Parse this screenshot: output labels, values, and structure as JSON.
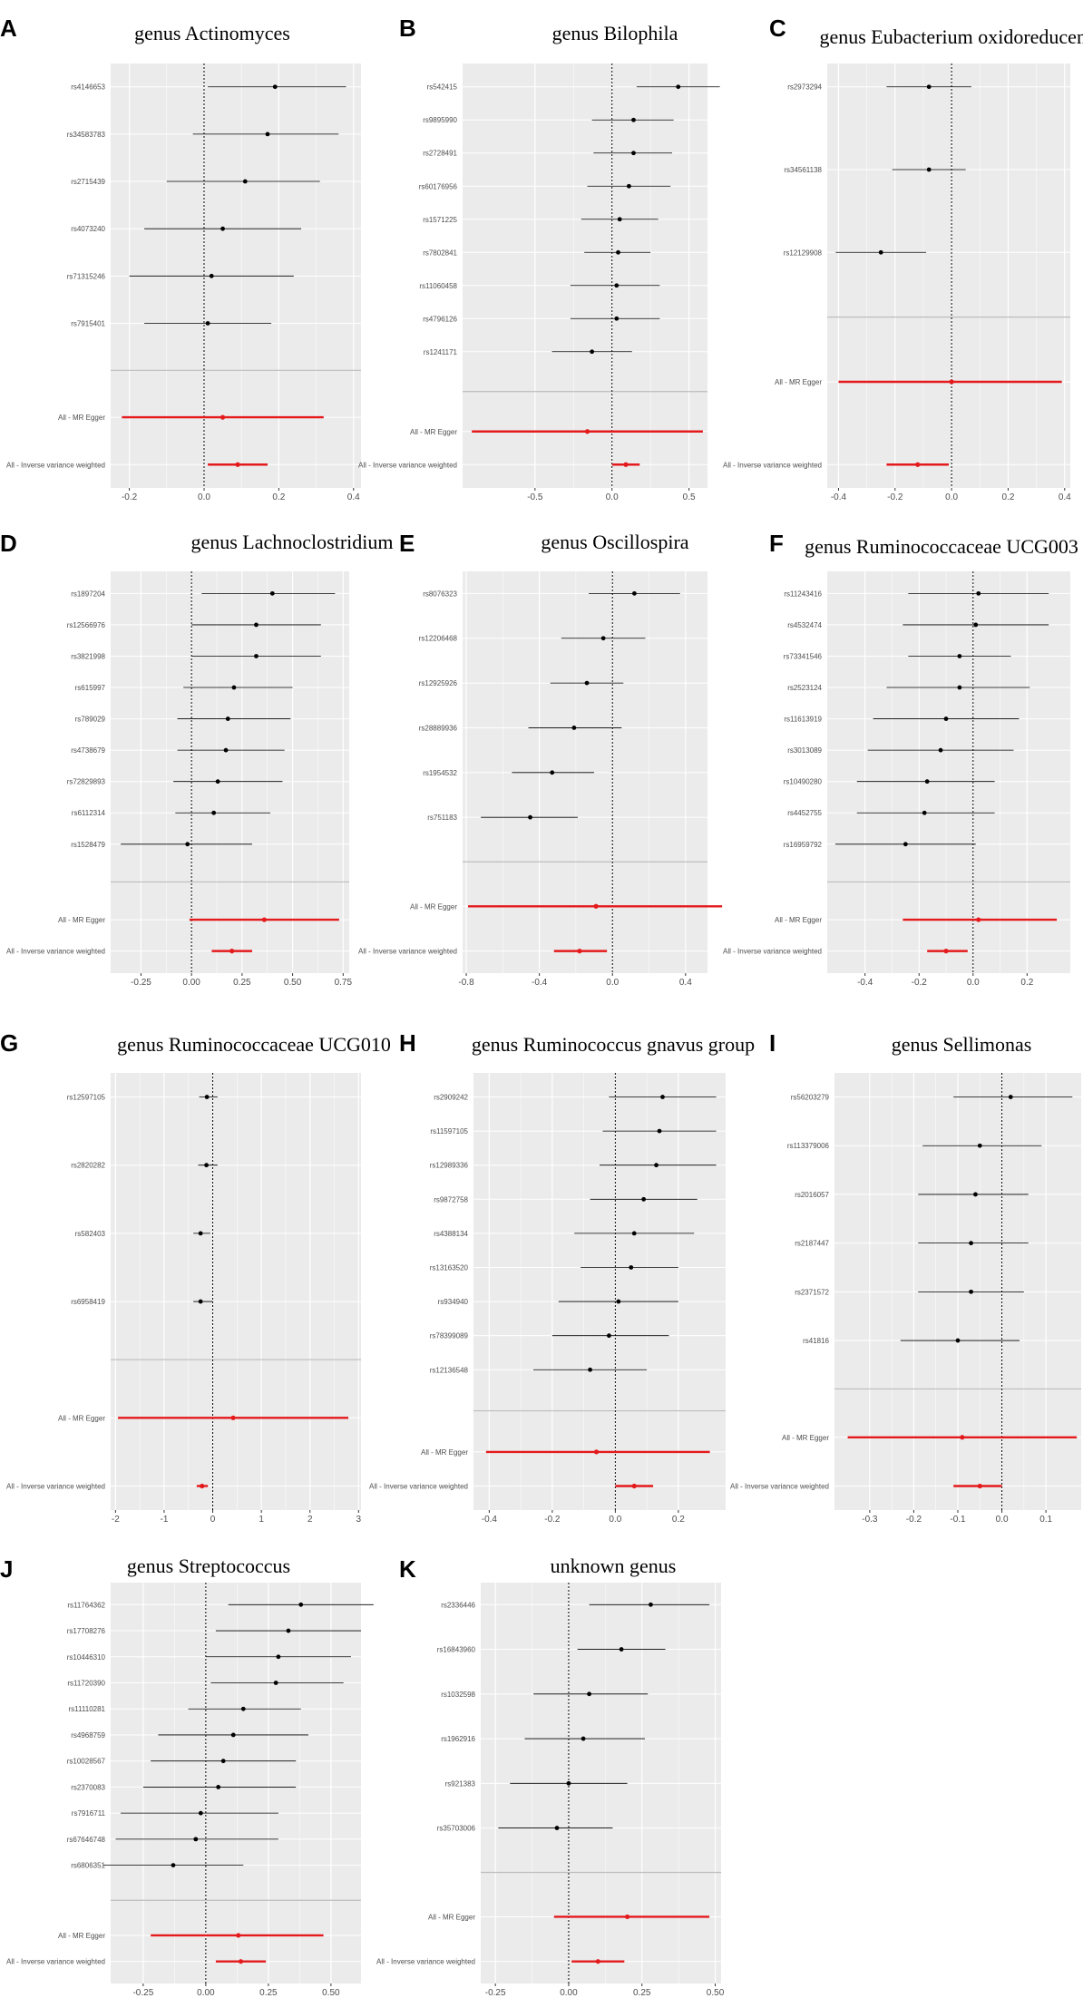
{
  "colors": {
    "panel_bg": "#ebebeb",
    "grid": "#ffffff",
    "point": "#000000",
    "summary": "#e41a1c",
    "separator": "#bdbdbd"
  },
  "chart_data": [
    {
      "type": "forest",
      "panel": "A",
      "title": "genus Actinomyces",
      "xlim": [
        -0.25,
        0.42
      ],
      "ticks": [
        -0.2,
        0.0,
        0.2,
        0.4
      ],
      "tick_labels": [
        "-0.2",
        "0.0",
        "0.2",
        "0.4"
      ],
      "snps": [
        {
          "label": "rs4146653",
          "est": 0.19,
          "lo": 0.01,
          "hi": 0.38
        },
        {
          "label": "rs34583783",
          "est": 0.17,
          "lo": -0.03,
          "hi": 0.36
        },
        {
          "label": "rs2715439",
          "est": 0.11,
          "lo": -0.1,
          "hi": 0.31
        },
        {
          "label": "rs4073240",
          "est": 0.05,
          "lo": -0.16,
          "hi": 0.26
        },
        {
          "label": "rs71315246",
          "est": 0.02,
          "lo": -0.2,
          "hi": 0.24
        },
        {
          "label": "rs7915401",
          "est": 0.01,
          "lo": -0.16,
          "hi": 0.18
        }
      ],
      "summary": [
        {
          "label": "All - MR Egger",
          "est": 0.05,
          "lo": -0.22,
          "hi": 0.32
        },
        {
          "label": "All - Inverse variance weighted",
          "est": 0.09,
          "lo": 0.01,
          "hi": 0.17
        }
      ]
    },
    {
      "type": "forest",
      "panel": "B",
      "title": "genus Bilophila",
      "xlim": [
        -0.97,
        0.62
      ],
      "ticks": [
        -0.5,
        0.0,
        0.5
      ],
      "tick_labels": [
        "-0.5",
        "0.0",
        "0.5"
      ],
      "snps": [
        {
          "label": "rs542415",
          "est": 0.43,
          "lo": 0.16,
          "hi": 0.7
        },
        {
          "label": "rs9895990",
          "est": 0.14,
          "lo": -0.13,
          "hi": 0.4
        },
        {
          "label": "rs2728491",
          "est": 0.14,
          "lo": -0.12,
          "hi": 0.39
        },
        {
          "label": "rs60176956",
          "est": 0.11,
          "lo": -0.16,
          "hi": 0.38
        },
        {
          "label": "rs1571225",
          "est": 0.05,
          "lo": -0.2,
          "hi": 0.3
        },
        {
          "label": "rs7802841",
          "est": 0.04,
          "lo": -0.18,
          "hi": 0.25
        },
        {
          "label": "rs11060458",
          "est": 0.03,
          "lo": -0.27,
          "hi": 0.31
        },
        {
          "label": "rs4796126",
          "est": 0.03,
          "lo": -0.27,
          "hi": 0.31
        },
        {
          "label": "rs1241171",
          "est": -0.13,
          "lo": -0.39,
          "hi": 0.13
        }
      ],
      "summary": [
        {
          "label": "All - MR Egger",
          "est": -0.16,
          "lo": -0.91,
          "hi": 0.59
        },
        {
          "label": "All - Inverse variance weighted",
          "est": 0.09,
          "lo": 0.0,
          "hi": 0.18
        }
      ]
    },
    {
      "type": "forest",
      "panel": "C",
      "title": "genus Eubacterium oxidoreducens",
      "xlim": [
        -0.44,
        0.42
      ],
      "ticks": [
        -0.4,
        -0.2,
        0.0,
        0.2,
        0.4
      ],
      "tick_labels": [
        "-0.4",
        "-0.2",
        "0.0",
        "0.2",
        "0.4"
      ],
      "snps": [
        {
          "label": "rs2973294",
          "est": -0.08,
          "lo": -0.23,
          "hi": 0.07
        },
        {
          "label": "rs34561138",
          "est": -0.08,
          "lo": -0.21,
          "hi": 0.05
        },
        {
          "label": "rs12129908",
          "est": -0.25,
          "lo": -0.41,
          "hi": -0.09
        }
      ],
      "summary": [
        {
          "label": "All - MR Egger",
          "est": 0.0,
          "lo": -0.4,
          "hi": 0.39
        },
        {
          "label": "All - Inverse variance weighted",
          "est": -0.12,
          "lo": -0.23,
          "hi": -0.01
        }
      ]
    },
    {
      "type": "forest",
      "panel": "D",
      "title": "genus Lachnoclostridium",
      "xlim": [
        -0.4,
        0.78
      ],
      "ticks": [
        -0.25,
        0.0,
        0.25,
        0.5,
        0.75
      ],
      "tick_labels": [
        "-0.25",
        "0.00",
        "0.25",
        "0.50",
        "0.75"
      ],
      "snps": [
        {
          "label": "rs1897204",
          "est": 0.4,
          "lo": 0.05,
          "hi": 0.71
        },
        {
          "label": "rs12566976",
          "est": 0.32,
          "lo": 0.0,
          "hi": 0.64
        },
        {
          "label": "rs3821998",
          "est": 0.32,
          "lo": 0.0,
          "hi": 0.64
        },
        {
          "label": "rs615997",
          "est": 0.21,
          "lo": -0.04,
          "hi": 0.5
        },
        {
          "label": "rs789029",
          "est": 0.18,
          "lo": -0.07,
          "hi": 0.49
        },
        {
          "label": "rs4738679",
          "est": 0.17,
          "lo": -0.07,
          "hi": 0.46
        },
        {
          "label": "rs72829893",
          "est": 0.13,
          "lo": -0.09,
          "hi": 0.45
        },
        {
          "label": "rs6112314",
          "est": 0.11,
          "lo": -0.08,
          "hi": 0.39
        },
        {
          "label": "rs1528479",
          "est": -0.02,
          "lo": -0.35,
          "hi": 0.3
        }
      ],
      "summary": [
        {
          "label": "All - MR Egger",
          "est": 0.36,
          "lo": -0.01,
          "hi": 0.73
        },
        {
          "label": "All - Inverse variance weighted",
          "est": 0.2,
          "lo": 0.1,
          "hi": 0.3
        }
      ]
    },
    {
      "type": "forest",
      "panel": "E",
      "title": "genus Oscillospira",
      "xlim": [
        -0.82,
        0.52
      ],
      "ticks": [
        -0.8,
        -0.4,
        0.0,
        0.4
      ],
      "tick_labels": [
        "-0.8",
        "-0.4",
        "0.0",
        "0.4"
      ],
      "snps": [
        {
          "label": "rs8076323",
          "est": 0.12,
          "lo": -0.13,
          "hi": 0.37
        },
        {
          "label": "rs12206468",
          "est": -0.05,
          "lo": -0.28,
          "hi": 0.18
        },
        {
          "label": "rs12925926",
          "est": -0.14,
          "lo": -0.34,
          "hi": 0.06
        },
        {
          "label": "rs28889936",
          "est": -0.21,
          "lo": -0.46,
          "hi": 0.05
        },
        {
          "label": "rs1954532",
          "est": -0.33,
          "lo": -0.55,
          "hi": -0.1
        },
        {
          "label": "rs751183",
          "est": -0.45,
          "lo": -0.72,
          "hi": -0.19
        }
      ],
      "summary": [
        {
          "label": "All - MR Egger",
          "est": -0.09,
          "lo": -0.79,
          "hi": 0.6
        },
        {
          "label": "All - Inverse variance weighted",
          "est": -0.18,
          "lo": -0.32,
          "hi": -0.03
        }
      ]
    },
    {
      "type": "forest",
      "panel": "F",
      "title": "genus Ruminococcaceae UCG003",
      "xlim": [
        -0.54,
        0.36
      ],
      "ticks": [
        -0.4,
        -0.2,
        0.0,
        0.2
      ],
      "tick_labels": [
        "-0.4",
        "-0.2",
        "0.0",
        "0.2"
      ],
      "snps": [
        {
          "label": "rs11243416",
          "est": 0.02,
          "lo": -0.24,
          "hi": 0.28
        },
        {
          "label": "rs4532474",
          "est": 0.01,
          "lo": -0.26,
          "hi": 0.28
        },
        {
          "label": "rs73341546",
          "est": -0.05,
          "lo": -0.24,
          "hi": 0.14
        },
        {
          "label": "rs2523124",
          "est": -0.05,
          "lo": -0.32,
          "hi": 0.21
        },
        {
          "label": "rs11613919",
          "est": -0.1,
          "lo": -0.37,
          "hi": 0.17
        },
        {
          "label": "rs3013089",
          "est": -0.12,
          "lo": -0.39,
          "hi": 0.15
        },
        {
          "label": "rs10490280",
          "est": -0.17,
          "lo": -0.43,
          "hi": 0.08
        },
        {
          "label": "rs4452755",
          "est": -0.18,
          "lo": -0.43,
          "hi": 0.08
        },
        {
          "label": "rs16959792",
          "est": -0.25,
          "lo": -0.51,
          "hi": 0.01
        }
      ],
      "summary": [
        {
          "label": "All - MR Egger",
          "est": 0.02,
          "lo": -0.26,
          "hi": 0.31
        },
        {
          "label": "All - Inverse variance weighted",
          "est": -0.1,
          "lo": -0.17,
          "hi": -0.02
        }
      ]
    },
    {
      "type": "forest",
      "panel": "G",
      "title": "genus Ruminococcaceae UCG010",
      "xlim": [
        -2.1,
        3.05
      ],
      "ticks": [
        -2,
        -1,
        0,
        1,
        2,
        3
      ],
      "tick_labels": [
        "-2",
        "-1",
        "0",
        "1",
        "2",
        "3"
      ],
      "snps": [
        {
          "label": "rs12597105",
          "est": -0.12,
          "lo": -0.28,
          "hi": 0.1
        },
        {
          "label": "rs2820282",
          "est": -0.13,
          "lo": -0.3,
          "hi": 0.1
        },
        {
          "label": "rs582403",
          "est": -0.25,
          "lo": -0.4,
          "hi": -0.05
        },
        {
          "label": "rs6958419",
          "est": -0.25,
          "lo": -0.4,
          "hi": 0.0
        }
      ],
      "summary": [
        {
          "label": "All - MR Egger",
          "est": 0.42,
          "lo": -1.95,
          "hi": 2.79
        },
        {
          "label": "All - Inverse variance weighted",
          "est": -0.22,
          "lo": -0.33,
          "hi": -0.1
        }
      ]
    },
    {
      "type": "forest",
      "panel": "H",
      "title": "genus Ruminococcus gnavus group",
      "xlim": [
        -0.45,
        0.35
      ],
      "ticks": [
        -0.4,
        -0.2,
        0.0,
        0.2
      ],
      "tick_labels": [
        "-0.4",
        "-0.2",
        "0.0",
        "0.2"
      ],
      "snps": [
        {
          "label": "rs2909242",
          "est": 0.15,
          "lo": -0.02,
          "hi": 0.32
        },
        {
          "label": "rs11597105",
          "est": 0.14,
          "lo": -0.04,
          "hi": 0.32
        },
        {
          "label": "rs12989336",
          "est": 0.13,
          "lo": -0.05,
          "hi": 0.32
        },
        {
          "label": "rs9872758",
          "est": 0.09,
          "lo": -0.08,
          "hi": 0.26
        },
        {
          "label": "rs4388134",
          "est": 0.06,
          "lo": -0.13,
          "hi": 0.25
        },
        {
          "label": "rs13163520",
          "est": 0.05,
          "lo": -0.11,
          "hi": 0.2
        },
        {
          "label": "rs934940",
          "est": 0.01,
          "lo": -0.18,
          "hi": 0.2
        },
        {
          "label": "rs78399089",
          "est": -0.02,
          "lo": -0.2,
          "hi": 0.17
        },
        {
          "label": "rs12136548",
          "est": -0.08,
          "lo": -0.26,
          "hi": 0.1
        }
      ],
      "summary": [
        {
          "label": "All - MR Egger",
          "est": -0.06,
          "lo": -0.41,
          "hi": 0.3
        },
        {
          "label": "All - Inverse variance weighted",
          "est": 0.06,
          "lo": 0.0,
          "hi": 0.12
        }
      ]
    },
    {
      "type": "forest",
      "panel": "I",
      "title": "genus Sellimonas",
      "xlim": [
        -0.38,
        0.18
      ],
      "ticks": [
        -0.3,
        -0.2,
        -0.1,
        0.0,
        0.1
      ],
      "tick_labels": [
        "-0.3",
        "-0.2",
        "-0.1",
        "0.0",
        "0.1"
      ],
      "snps": [
        {
          "label": "rs56203279",
          "est": 0.02,
          "lo": -0.11,
          "hi": 0.16
        },
        {
          "label": "rs113379006",
          "est": -0.05,
          "lo": -0.18,
          "hi": 0.09
        },
        {
          "label": "rs2016057",
          "est": -0.06,
          "lo": -0.19,
          "hi": 0.06
        },
        {
          "label": "rs2187447",
          "est": -0.07,
          "lo": -0.19,
          "hi": 0.06
        },
        {
          "label": "rs2371572",
          "est": -0.07,
          "lo": -0.19,
          "hi": 0.05
        },
        {
          "label": "rs41816",
          "est": -0.1,
          "lo": -0.23,
          "hi": 0.04
        }
      ],
      "summary": [
        {
          "label": "All - MR Egger",
          "est": -0.09,
          "lo": -0.35,
          "hi": 0.17
        },
        {
          "label": "All - Inverse variance weighted",
          "est": -0.05,
          "lo": -0.11,
          "hi": 0.0
        }
      ]
    },
    {
      "type": "forest",
      "panel": "J",
      "title": "genus Streptococcus",
      "xlim": [
        -0.38,
        0.62
      ],
      "ticks": [
        -0.25,
        0.0,
        0.25,
        0.5
      ],
      "tick_labels": [
        "-0.25",
        "0.00",
        "0.25",
        "0.50"
      ],
      "snps": [
        {
          "label": "rs11764362",
          "est": 0.38,
          "lo": 0.09,
          "hi": 0.67
        },
        {
          "label": "rs17708276",
          "est": 0.33,
          "lo": 0.04,
          "hi": 0.62
        },
        {
          "label": "rs10446310",
          "est": 0.29,
          "lo": 0.0,
          "hi": 0.58
        },
        {
          "label": "rs11720390",
          "est": 0.28,
          "lo": 0.02,
          "hi": 0.55
        },
        {
          "label": "rs11110281",
          "est": 0.15,
          "lo": -0.07,
          "hi": 0.38
        },
        {
          "label": "rs4968759",
          "est": 0.11,
          "lo": -0.19,
          "hi": 0.41
        },
        {
          "label": "rs10028567",
          "est": 0.07,
          "lo": -0.22,
          "hi": 0.36
        },
        {
          "label": "rs2370083",
          "est": 0.05,
          "lo": -0.25,
          "hi": 0.36
        },
        {
          "label": "rs7916711",
          "est": -0.02,
          "lo": -0.34,
          "hi": 0.29
        },
        {
          "label": "rs67646748",
          "est": -0.04,
          "lo": -0.36,
          "hi": 0.29
        },
        {
          "label": "rs6806351",
          "est": -0.13,
          "lo": -0.41,
          "hi": 0.15
        }
      ],
      "summary": [
        {
          "label": "All - MR Egger",
          "est": 0.13,
          "lo": -0.22,
          "hi": 0.47
        },
        {
          "label": "All - Inverse variance weighted",
          "est": 0.14,
          "lo": 0.04,
          "hi": 0.24
        }
      ]
    },
    {
      "type": "forest",
      "panel": "K",
      "title": "unknown genus",
      "xlim": [
        -0.3,
        0.52
      ],
      "ticks": [
        -0.25,
        0.0,
        0.25,
        0.5
      ],
      "tick_labels": [
        "-0.25",
        "0.00",
        "0.25",
        "0.50"
      ],
      "snps": [
        {
          "label": "rs2336446",
          "est": 0.28,
          "lo": 0.07,
          "hi": 0.48
        },
        {
          "label": "rs16843960",
          "est": 0.18,
          "lo": 0.03,
          "hi": 0.33
        },
        {
          "label": "rs1032598",
          "est": 0.07,
          "lo": -0.12,
          "hi": 0.27
        },
        {
          "label": "rs1962916",
          "est": 0.05,
          "lo": -0.15,
          "hi": 0.26
        },
        {
          "label": "rs921383",
          "est": 0.0,
          "lo": -0.2,
          "hi": 0.2
        },
        {
          "label": "rs35703006",
          "est": -0.04,
          "lo": -0.24,
          "hi": 0.15
        }
      ],
      "summary": [
        {
          "label": "All - MR Egger",
          "est": 0.2,
          "lo": -0.05,
          "hi": 0.48
        },
        {
          "label": "All - Inverse variance weighted",
          "est": 0.1,
          "lo": 0.01,
          "hi": 0.19
        }
      ]
    }
  ]
}
